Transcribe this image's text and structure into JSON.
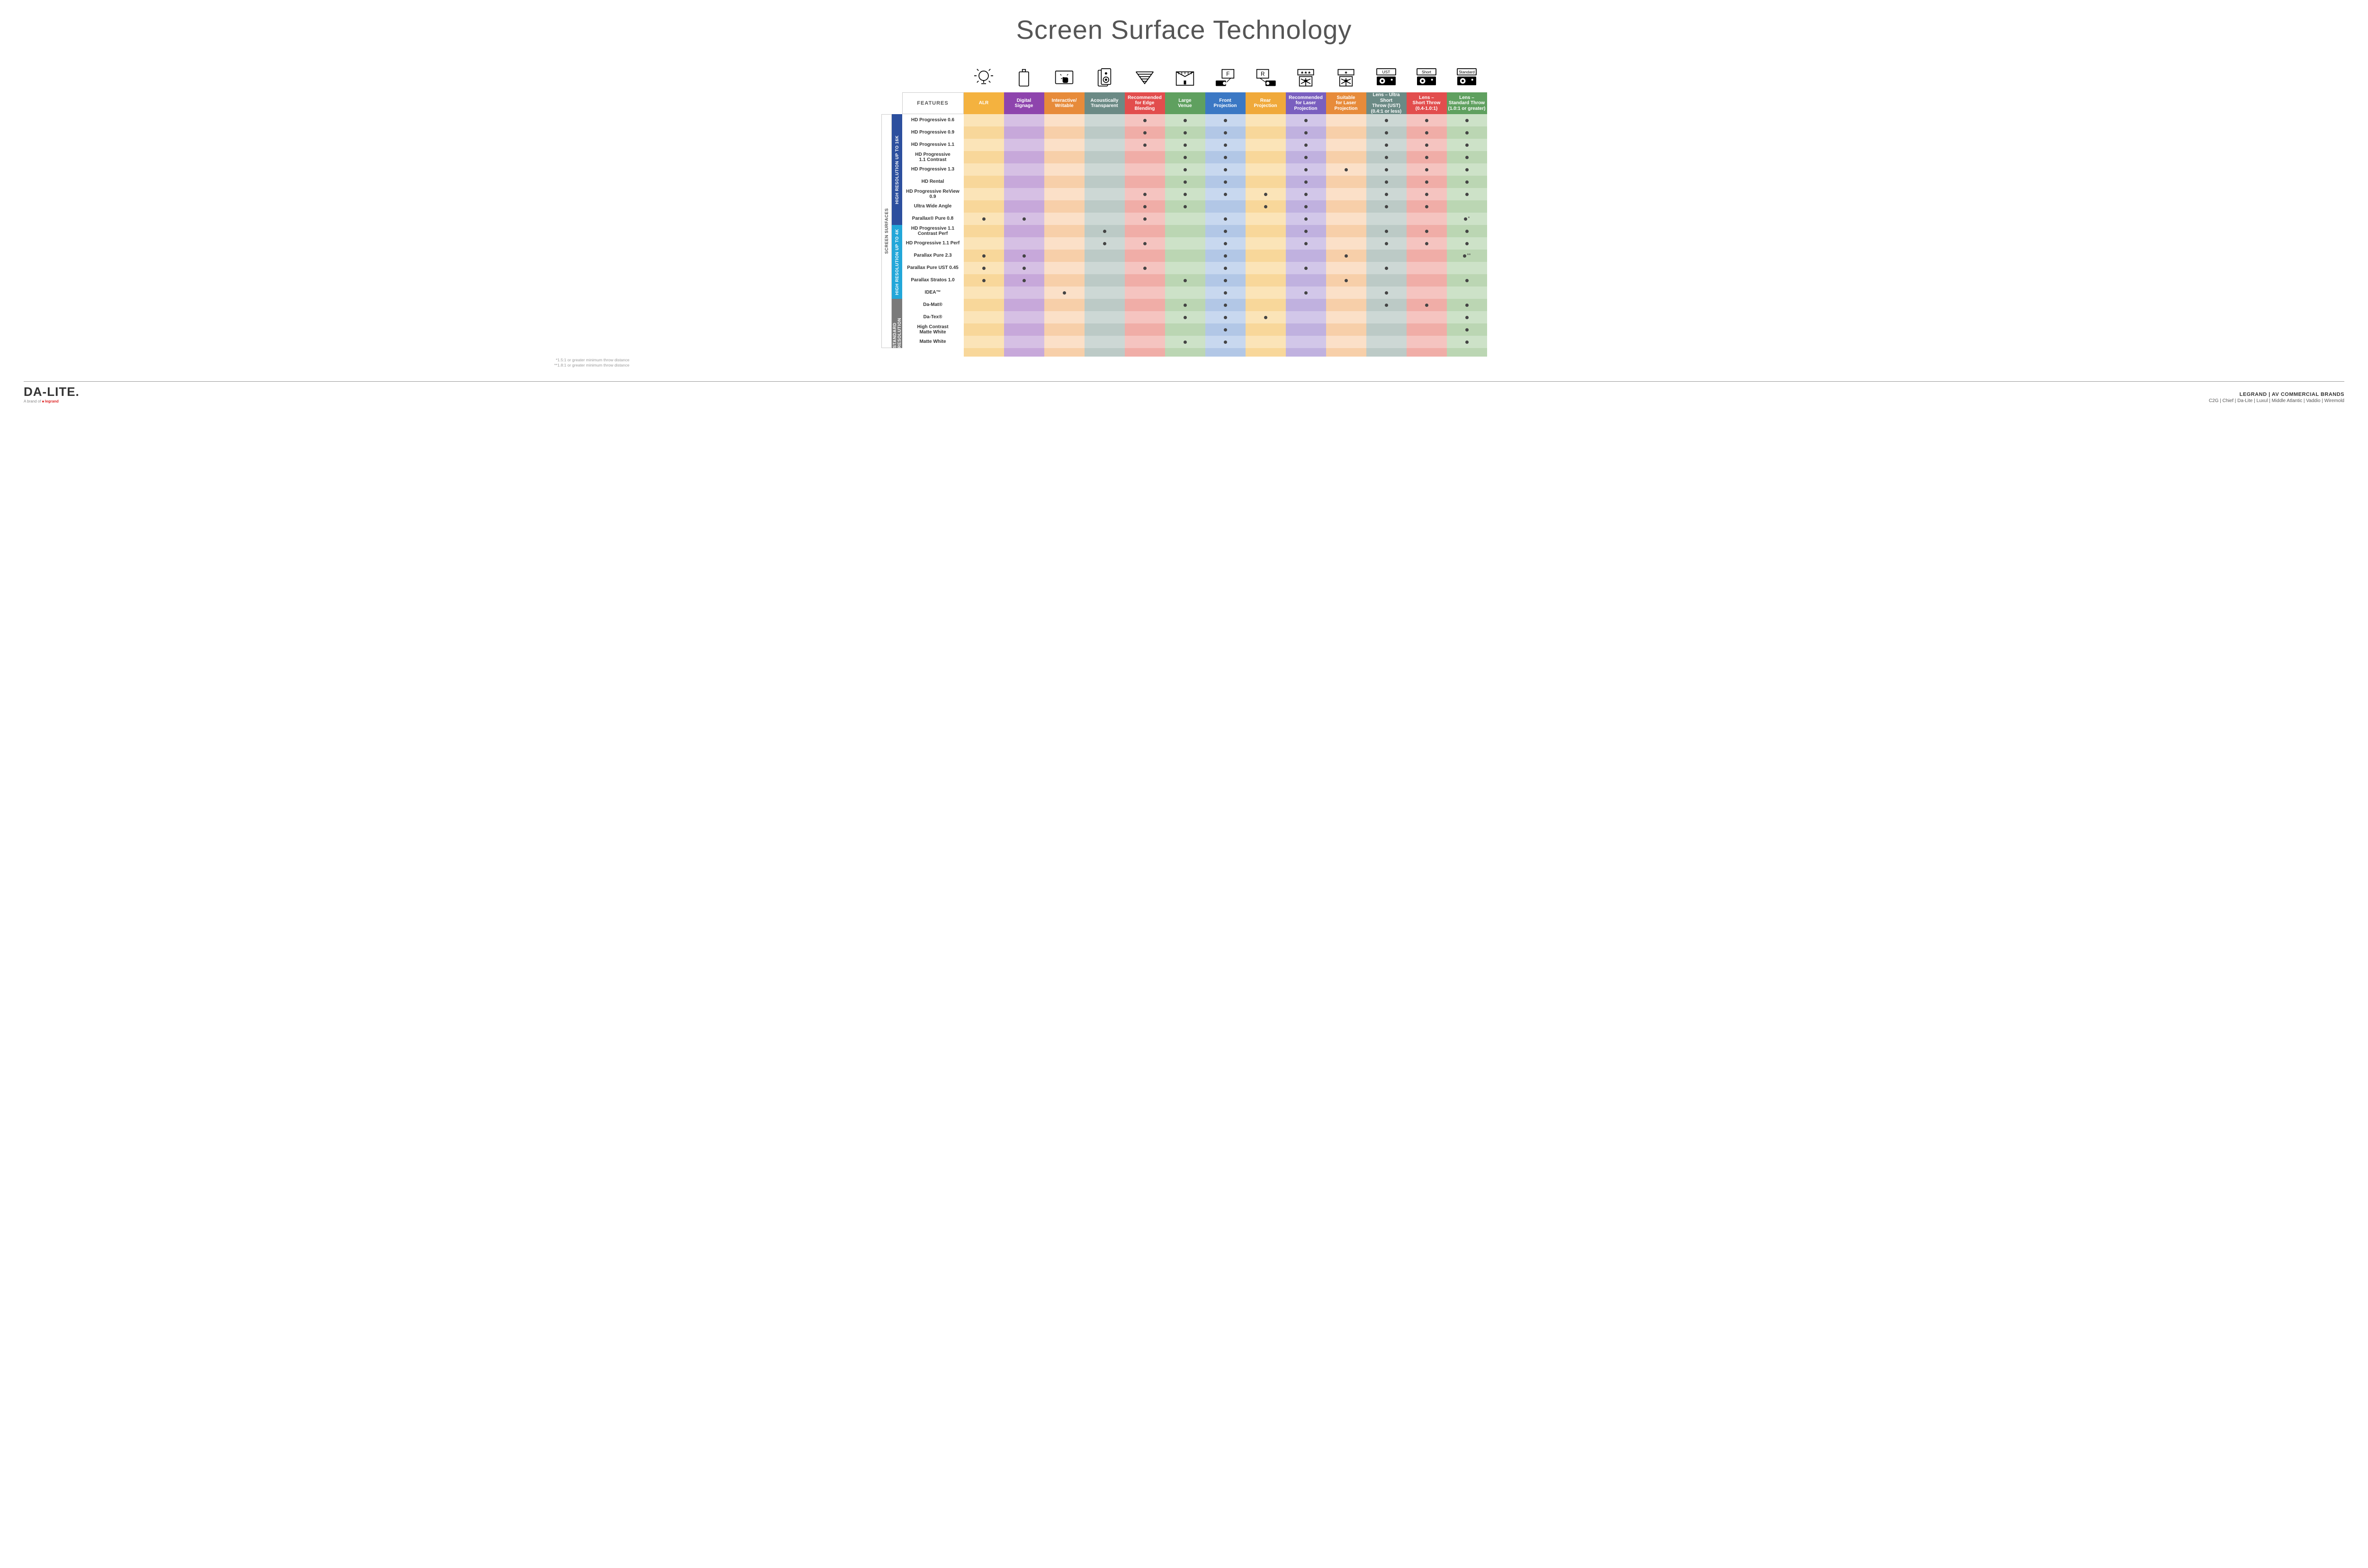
{
  "title": "Screen Surface Technology",
  "layout": {
    "sideCol1W": 22,
    "sideCol2W": 22,
    "featColW": 130,
    "dataColW": 85,
    "numDataCols": 13
  },
  "columns": [
    {
      "key": "alr",
      "label": "ALR",
      "color": "#f4b23f",
      "icon": "bulb"
    },
    {
      "key": "signage",
      "label": "Digital\nSignage",
      "color": "#8e44ad",
      "icon": "device"
    },
    {
      "key": "writable",
      "label": "Interactive/\nWritable",
      "color": "#e78b3a",
      "icon": "touch"
    },
    {
      "key": "acoustic",
      "label": "Acoustically\nTransparent",
      "color": "#6b8a85",
      "icon": "speaker"
    },
    {
      "key": "edge",
      "label": "Recommended\nfor Edge\nBlending",
      "color": "#e24d4d",
      "icon": "wedge"
    },
    {
      "key": "large",
      "label": "Large\nVenue",
      "color": "#5fa05f",
      "icon": "stage"
    },
    {
      "key": "front",
      "label": "Front\nProjection",
      "color": "#3b78c4",
      "icon": "front"
    },
    {
      "key": "rear",
      "label": "Rear\nProjection",
      "color": "#f0a93a",
      "icon": "rear"
    },
    {
      "key": "reclaser",
      "label": "Recommended\nfor Laser\nProjection",
      "color": "#7a5fbf",
      "icon": "laser3"
    },
    {
      "key": "suitlaser",
      "label": "Suitable\nfor Laser\nProjection",
      "color": "#e78b3a",
      "icon": "laser1"
    },
    {
      "key": "ust",
      "label": "Lens – Ultra Short\nThrow (UST)\n(0.4:1 or less)",
      "color": "#6b8a85",
      "icon": "projUST"
    },
    {
      "key": "short",
      "label": "Lens –\nShort Throw\n(0.4-1.0:1)",
      "color": "#e24d4d",
      "icon": "projShort"
    },
    {
      "key": "std",
      "label": "Lens –\nStandard Throw\n(1.0:1 or greater)",
      "color": "#5fa05f",
      "icon": "projStd"
    }
  ],
  "tints": {
    "alr": {
      "e": "#fbe4b8",
      "o": "#f8d79a"
    },
    "signage": {
      "e": "#d6c0e4",
      "o": "#c7a8da"
    },
    "writable": {
      "e": "#fbe0c8",
      "o": "#f7cfa9"
    },
    "acoustic": {
      "e": "#cdd8d5",
      "o": "#bccac6"
    },
    "edge": {
      "e": "#f5c4c0",
      "o": "#f0ada7"
    },
    "large": {
      "e": "#cde2c8",
      "o": "#bbd6b3"
    },
    "front": {
      "e": "#c8d8ef",
      "o": "#b2c7e6"
    },
    "rear": {
      "e": "#fbe4b8",
      "o": "#f8d79a"
    },
    "reclaser": {
      "e": "#d2c7e9",
      "o": "#c0b1df"
    },
    "suitlaser": {
      "e": "#fbe0c8",
      "o": "#f7cfa9"
    },
    "ust": {
      "e": "#cdd8d5",
      "o": "#bccac6"
    },
    "short": {
      "e": "#f5c4c0",
      "o": "#f0ada7"
    },
    "std": {
      "e": "#cde2c8",
      "o": "#bbd6b3"
    }
  },
  "groups": [
    {
      "key": "g16k",
      "label": "HIGH RESOLUTION UP TO 16K",
      "color": "#2c4f9e",
      "rows": [
        {
          "name": "HD Progressive 0.6",
          "marks": {
            "edge": 1,
            "large": 1,
            "front": 1,
            "reclaser": 1,
            "ust": 1,
            "short": 1,
            "std": 1
          }
        },
        {
          "name": "HD Progressive 0.9",
          "marks": {
            "edge": 1,
            "large": 1,
            "front": 1,
            "reclaser": 1,
            "ust": 1,
            "short": 1,
            "std": 1
          }
        },
        {
          "name": "HD Progressive 1.1",
          "marks": {
            "edge": 1,
            "large": 1,
            "front": 1,
            "reclaser": 1,
            "ust": 1,
            "short": 1,
            "std": 1
          }
        },
        {
          "name": "HD Progressive\n1.1 Contrast",
          "marks": {
            "large": 1,
            "front": 1,
            "reclaser": 1,
            "ust": 1,
            "short": 1,
            "std": 1
          }
        },
        {
          "name": "HD Progressive 1.3",
          "marks": {
            "large": 1,
            "front": 1,
            "reclaser": 1,
            "suitlaser": 1,
            "ust": 1,
            "short": 1,
            "std": 1
          }
        },
        {
          "name": "HD Rental",
          "marks": {
            "large": 1,
            "front": 1,
            "reclaser": 1,
            "ust": 1,
            "short": 1,
            "std": 1
          }
        },
        {
          "name": "HD Progressive ReView 0.9",
          "marks": {
            "edge": 1,
            "large": 1,
            "front": 1,
            "rear": 1,
            "reclaser": 1,
            "ust": 1,
            "short": 1,
            "std": 1
          }
        },
        {
          "name": "Ultra Wide Angle",
          "marks": {
            "edge": 1,
            "large": 1,
            "rear": 1,
            "reclaser": 1,
            "ust": 1,
            "short": 1
          }
        },
        {
          "name": "Parallax® Pure 0.8",
          "marks": {
            "alr": 1,
            "signage": 1,
            "edge": 1,
            "front": 1,
            "reclaser": 1,
            "std": "*"
          }
        }
      ]
    },
    {
      "key": "g4k",
      "label": "HIGH RESOLUTION UP TO 4K",
      "color": "#22a7d9",
      "rows": [
        {
          "name": "HD Progressive 1.1\nContrast Perf",
          "marks": {
            "acoustic": 1,
            "front": 1,
            "reclaser": 1,
            "ust": 1,
            "short": 1,
            "std": 1
          }
        },
        {
          "name": "HD Progressive 1.1 Perf",
          "marks": {
            "acoustic": 1,
            "edge": 1,
            "front": 1,
            "reclaser": 1,
            "ust": 1,
            "short": 1,
            "std": 1
          }
        },
        {
          "name": "Parallax Pure 2.3",
          "marks": {
            "alr": 1,
            "signage": 1,
            "front": 1,
            "suitlaser": 1,
            "std": "**"
          }
        },
        {
          "name": "Parallax Pure UST 0.45",
          "marks": {
            "alr": 1,
            "signage": 1,
            "edge": 1,
            "front": 1,
            "reclaser": 1,
            "ust": 1
          }
        },
        {
          "name": "Parallax Stratos 1.0",
          "marks": {
            "alr": 1,
            "signage": 1,
            "large": 1,
            "front": 1,
            "suitlaser": 1,
            "std": 1
          }
        },
        {
          "name": "IDEA™",
          "marks": {
            "writable": 1,
            "front": 1,
            "reclaser": 1,
            "ust": 1
          }
        }
      ]
    },
    {
      "key": "gstd",
      "label": "STANDARD\nRESOLUTION",
      "color": "#7a7a7a",
      "rows": [
        {
          "name": "Da-Mat®",
          "marks": {
            "large": 1,
            "front": 1,
            "ust": 1,
            "short": 1,
            "std": 1
          }
        },
        {
          "name": "Da-Tex®",
          "marks": {
            "large": 1,
            "front": 1,
            "rear": 1,
            "std": 1
          }
        },
        {
          "name": "High Contrast\nMatte White",
          "marks": {
            "front": 1,
            "std": 1
          }
        },
        {
          "name": "Matte White",
          "marks": {
            "large": 1,
            "front": 1,
            "std": 1
          }
        }
      ]
    }
  ],
  "featuresHeader": "FEATURES",
  "outerLabel": "SCREEN SURFACES",
  "footnotes": [
    "*1.5:1 or greater minimum throw distance",
    "**1.8:1 or greater minimum throw distance"
  ],
  "footer": {
    "logo": "DA-LITE.",
    "logoSubPrefix": "A brand of ",
    "logoSubBrand": "legrand",
    "brandsTitle": "LEGRAND | AV COMMERCIAL BRANDS",
    "brands": [
      "C2G",
      "Chief",
      "Da-Lite",
      "Luxul",
      "Middle Atlantic",
      "Vaddio",
      "Wiremold"
    ]
  }
}
